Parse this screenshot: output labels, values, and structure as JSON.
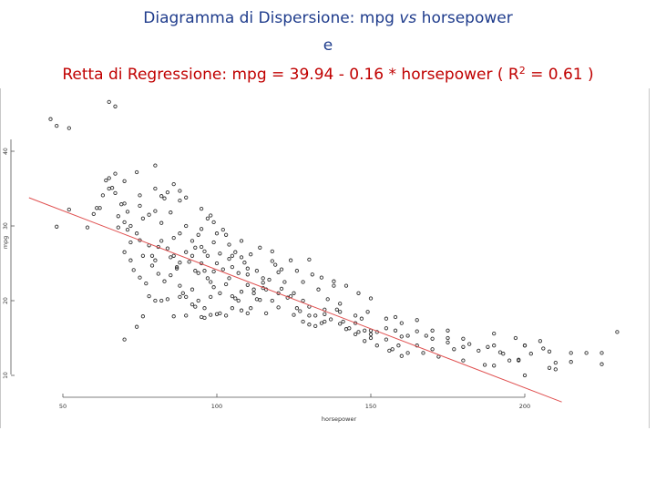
{
  "title": {
    "line1_pre": "Diagramma di Dispersione: mpg ",
    "line1_vs": "vs",
    "line1_post": " horsepower",
    "line2": "e",
    "line3_pre": "Retta di Regressione: mpg = 39.94 - 0.16 * horsepower ( R",
    "line3_sup": "2",
    "line3_post": " = 0.61 )"
  },
  "chart_data": {
    "type": "scatter",
    "xlabel": "horsepower",
    "ylabel": "mpg",
    "x_ticks": [
      50,
      100,
      150,
      200
    ],
    "y_ticks": [
      10,
      20,
      30,
      40
    ],
    "xlim": [
      46,
      230
    ],
    "ylim": [
      8,
      47
    ],
    "regression": {
      "intercept": 39.94,
      "slope": -0.158,
      "color": "#e05050"
    },
    "point_color": "#333333",
    "points": [
      [
        65,
        46.6
      ],
      [
        48,
        43.4
      ],
      [
        52,
        43.1
      ],
      [
        46,
        44.3
      ],
      [
        67,
        46.0
      ],
      [
        80,
        38.1
      ],
      [
        70,
        36.0
      ],
      [
        74,
        37.2
      ],
      [
        75,
        34.1
      ],
      [
        65,
        35.0
      ],
      [
        84,
        34.5
      ],
      [
        88,
        33.4
      ],
      [
        62,
        32.4
      ],
      [
        60,
        31.6
      ],
      [
        48,
        29.9
      ],
      [
        68,
        31.3
      ],
      [
        70,
        33.0
      ],
      [
        52,
        32.2
      ],
      [
        58,
        29.8
      ],
      [
        61,
        32.4
      ],
      [
        65,
        36.4
      ],
      [
        67,
        37.0
      ],
      [
        69,
        32.9
      ],
      [
        71,
        31.9
      ],
      [
        72,
        30.0
      ],
      [
        75,
        32.7
      ],
      [
        76,
        31.0
      ],
      [
        78,
        31.5
      ],
      [
        80,
        32.0
      ],
      [
        82,
        30.4
      ],
      [
        83,
        33.7
      ],
      [
        85,
        31.8
      ],
      [
        86,
        28.4
      ],
      [
        88,
        29.0
      ],
      [
        90,
        30.0
      ],
      [
        92,
        28.0
      ],
      [
        95,
        27.2
      ],
      [
        96,
        26.6
      ],
      [
        63,
        34.1
      ],
      [
        64,
        36.1
      ],
      [
        66,
        35.1
      ],
      [
        67,
        34.4
      ],
      [
        68,
        29.8
      ],
      [
        70,
        30.5
      ],
      [
        71,
        29.5
      ],
      [
        72,
        27.8
      ],
      [
        74,
        29.0
      ],
      [
        75,
        28.1
      ],
      [
        76,
        26.0
      ],
      [
        78,
        27.4
      ],
      [
        79,
        26.0
      ],
      [
        80,
        25.4
      ],
      [
        81,
        27.2
      ],
      [
        82,
        28.0
      ],
      [
        84,
        27.0
      ],
      [
        85,
        25.8
      ],
      [
        86,
        26.0
      ],
      [
        87,
        24.3
      ],
      [
        88,
        25.1
      ],
      [
        90,
        26.5
      ],
      [
        92,
        26.0
      ],
      [
        93,
        24.0
      ],
      [
        94,
        23.7
      ],
      [
        95,
        25.0
      ],
      [
        96,
        24.0
      ],
      [
        97,
        23.0
      ],
      [
        98,
        22.5
      ],
      [
        99,
        23.9
      ],
      [
        100,
        25.0
      ],
      [
        102,
        24.2
      ],
      [
        104,
        23.0
      ],
      [
        105,
        24.5
      ],
      [
        107,
        20.0
      ],
      [
        110,
        24.3
      ],
      [
        112,
        21.0
      ],
      [
        115,
        22.4
      ],
      [
        116,
        21.5
      ],
      [
        80,
        35.0
      ],
      [
        82,
        34.0
      ],
      [
        86,
        35.6
      ],
      [
        88,
        34.7
      ],
      [
        90,
        33.8
      ],
      [
        95,
        32.3
      ],
      [
        98,
        31.4
      ],
      [
        100,
        29.0
      ],
      [
        103,
        28.8
      ],
      [
        105,
        26.0
      ],
      [
        108,
        25.8
      ],
      [
        110,
        23.5
      ],
      [
        112,
        21.5
      ],
      [
        115,
        23.0
      ],
      [
        118,
        26.6
      ],
      [
        120,
        23.8
      ],
      [
        122,
        22.5
      ],
      [
        124,
        20.6
      ],
      [
        126,
        19.0
      ],
      [
        128,
        20.0
      ],
      [
        130,
        18.0
      ],
      [
        132,
        16.6
      ],
      [
        134,
        17.0
      ],
      [
        135,
        18.2
      ],
      [
        137,
        17.5
      ],
      [
        140,
        16.9
      ],
      [
        142,
        16.2
      ],
      [
        145,
        15.5
      ],
      [
        147,
        17.6
      ],
      [
        148,
        16.0
      ],
      [
        150,
        15.0
      ],
      [
        152,
        14.0
      ],
      [
        155,
        14.8
      ],
      [
        157,
        13.5
      ],
      [
        160,
        12.6
      ],
      [
        162,
        15.3
      ],
      [
        165,
        14.0
      ],
      [
        167,
        13.0
      ],
      [
        170,
        13.5
      ],
      [
        175,
        14.4
      ],
      [
        180,
        12.0
      ],
      [
        190,
        14.0
      ],
      [
        193,
        12.9
      ],
      [
        198,
        12.0
      ],
      [
        200,
        14.0
      ],
      [
        208,
        11.0
      ],
      [
        210,
        10.8
      ],
      [
        215,
        13.0
      ],
      [
        220,
        13.0
      ],
      [
        225,
        13.0
      ],
      [
        230,
        15.8
      ],
      [
        225,
        11.5
      ],
      [
        215,
        11.8
      ],
      [
        200,
        10.0
      ],
      [
        198,
        12.1
      ],
      [
        190,
        11.3
      ],
      [
        180,
        14.9
      ],
      [
        175,
        16.0
      ],
      [
        170,
        14.9
      ],
      [
        165,
        15.9
      ],
      [
        160,
        17.0
      ],
      [
        158,
        16.0
      ],
      [
        155,
        17.6
      ],
      [
        150,
        16.0
      ],
      [
        149,
        18.5
      ],
      [
        145,
        18.0
      ],
      [
        140,
        19.6
      ],
      [
        138,
        22.0
      ],
      [
        135,
        18.8
      ],
      [
        130,
        19.2
      ],
      [
        128,
        22.5
      ],
      [
        125,
        21.0
      ],
      [
        120,
        21.0
      ],
      [
        118,
        20.0
      ],
      [
        116,
        18.3
      ],
      [
        113,
        20.2
      ],
      [
        110,
        18.3
      ],
      [
        108,
        18.7
      ],
      [
        105,
        19.0
      ],
      [
        103,
        18.0
      ],
      [
        101,
        18.3
      ],
      [
        100,
        18.2
      ],
      [
        98,
        18.1
      ],
      [
        96,
        17.7
      ],
      [
        95,
        17.8
      ],
      [
        93,
        19.2
      ],
      [
        92,
        19.5
      ],
      [
        90,
        20.5
      ],
      [
        88,
        20.5
      ],
      [
        86,
        17.9
      ],
      [
        84,
        20.2
      ],
      [
        82,
        20.0
      ],
      [
        80,
        20.0
      ],
      [
        78,
        20.6
      ],
      [
        76,
        17.9
      ],
      [
        74,
        16.5
      ],
      [
        70,
        14.8
      ],
      [
        105,
        20.6
      ],
      [
        110,
        22.1
      ],
      [
        115,
        21.7
      ],
      [
        120,
        19.1
      ],
      [
        125,
        18.1
      ],
      [
        128,
        17.2
      ],
      [
        130,
        16.8
      ],
      [
        132,
        18.0
      ],
      [
        135,
        17.2
      ],
      [
        140,
        18.5
      ],
      [
        145,
        17.0
      ],
      [
        150,
        15.5
      ],
      [
        155,
        16.3
      ],
      [
        160,
        15.2
      ],
      [
        165,
        17.4
      ],
      [
        170,
        16.0
      ],
      [
        175,
        15.0
      ],
      [
        180,
        13.8
      ],
      [
        185,
        13.3
      ],
      [
        188,
        13.8
      ],
      [
        190,
        15.6
      ],
      [
        195,
        12.0
      ],
      [
        200,
        14.0
      ],
      [
        205,
        14.6
      ],
      [
        208,
        13.2
      ],
      [
        210,
        11.7
      ],
      [
        95,
        29.6
      ],
      [
        97,
        31.0
      ],
      [
        99,
        30.5
      ],
      [
        102,
        29.5
      ],
      [
        104,
        27.5
      ],
      [
        106,
        26.5
      ],
      [
        108,
        28.0
      ],
      [
        111,
        26.2
      ],
      [
        114,
        27.1
      ],
      [
        118,
        25.3
      ],
      [
        121,
        24.2
      ],
      [
        124,
        25.4
      ],
      [
        126,
        24.0
      ],
      [
        130,
        25.5
      ],
      [
        134,
        23.1
      ],
      [
        138,
        22.6
      ],
      [
        142,
        22.0
      ],
      [
        146,
        21.0
      ],
      [
        150,
        20.3
      ],
      [
        158,
        17.8
      ],
      [
        88,
        22.0
      ],
      [
        89,
        21.0
      ],
      [
        90,
        18.0
      ],
      [
        92,
        21.5
      ],
      [
        94,
        20.0
      ],
      [
        96,
        19.0
      ],
      [
        98,
        20.5
      ],
      [
        99,
        21.8
      ],
      [
        101,
        21.0
      ],
      [
        103,
        22.2
      ],
      [
        106,
        20.3
      ],
      [
        108,
        21.2
      ],
      [
        111,
        19.0
      ],
      [
        114,
        20.1
      ],
      [
        117,
        22.8
      ],
      [
        119,
        24.8
      ],
      [
        121,
        21.6
      ],
      [
        123,
        20.4
      ],
      [
        127,
        18.6
      ],
      [
        131,
        23.5
      ],
      [
        133,
        21.5
      ],
      [
        136,
        20.2
      ],
      [
        139,
        18.8
      ],
      [
        141,
        17.2
      ],
      [
        143,
        16.3
      ],
      [
        146,
        15.8
      ],
      [
        148,
        14.6
      ],
      [
        152,
        15.8
      ],
      [
        156,
        13.3
      ],
      [
        159,
        14.0
      ],
      [
        162,
        13.0
      ],
      [
        168,
        15.3
      ],
      [
        172,
        12.5
      ],
      [
        177,
        13.5
      ],
      [
        182,
        14.2
      ],
      [
        187,
        11.4
      ],
      [
        192,
        13.1
      ],
      [
        197,
        15.0
      ],
      [
        202,
        12.9
      ],
      [
        206,
        13.6
      ],
      [
        70,
        26.5
      ],
      [
        72,
        25.4
      ],
      [
        73,
        24.1
      ],
      [
        75,
        23.1
      ],
      [
        77,
        22.3
      ],
      [
        79,
        24.7
      ],
      [
        81,
        23.6
      ],
      [
        83,
        22.6
      ],
      [
        85,
        23.4
      ],
      [
        87,
        24.5
      ],
      [
        91,
        25.2
      ],
      [
        93,
        27.1
      ],
      [
        94,
        28.8
      ],
      [
        97,
        26.0
      ],
      [
        99,
        27.8
      ],
      [
        101,
        26.3
      ],
      [
        104,
        25.6
      ],
      [
        107,
        23.7
      ],
      [
        109,
        25.1
      ],
      [
        113,
        24.0
      ]
    ]
  }
}
